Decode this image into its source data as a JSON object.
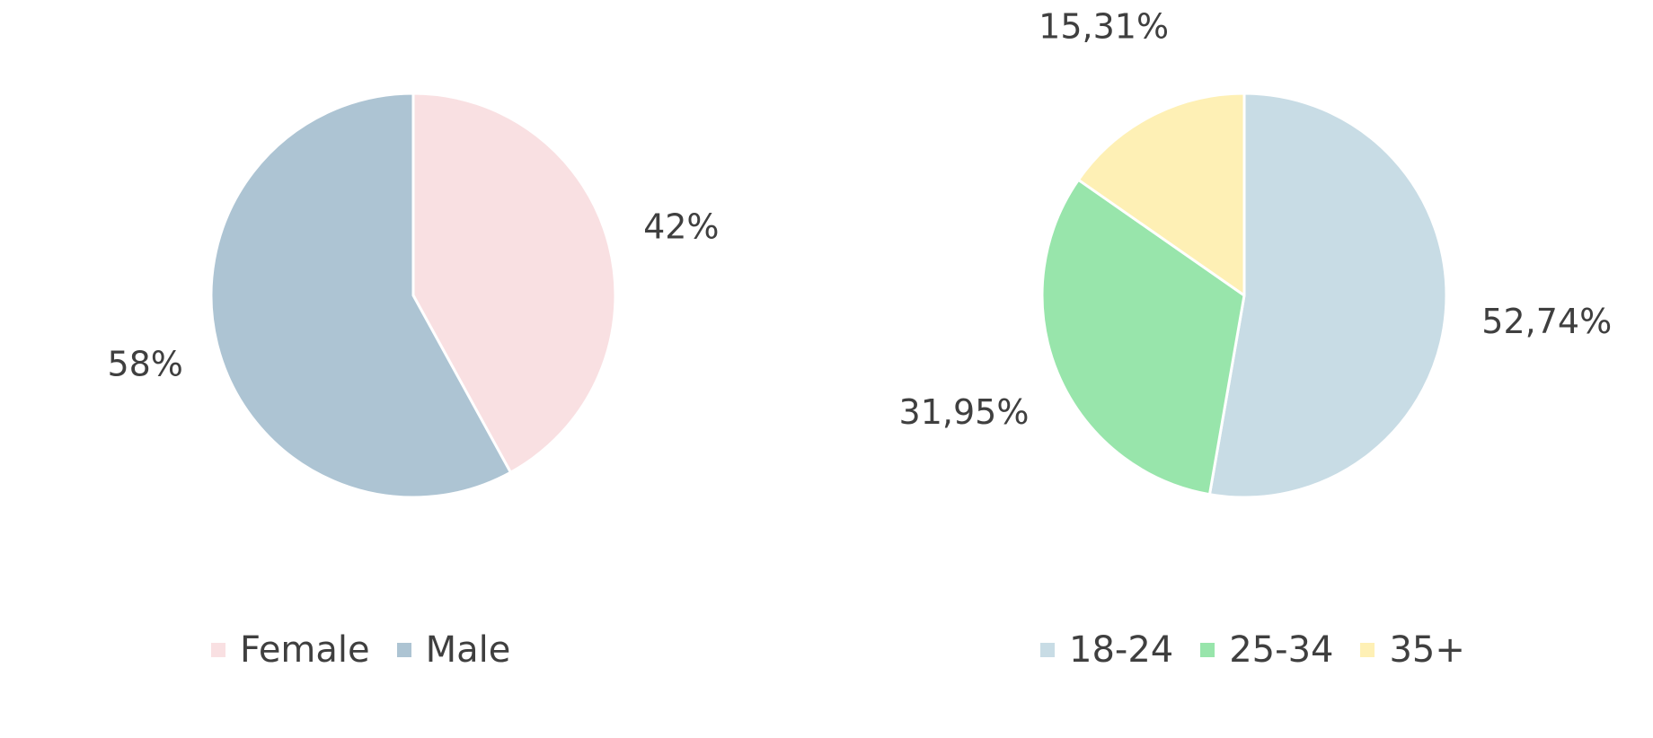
{
  "chart_data": [
    {
      "type": "pie",
      "slices": [
        {
          "label": "Female",
          "value": 42,
          "value_label": "42%",
          "color": "#f9e0e2"
        },
        {
          "label": "Male",
          "value": 58,
          "value_label": "58%",
          "color": "#adc4d3"
        }
      ],
      "legend": {
        "position": "bottom",
        "entries": [
          "Female",
          "Male"
        ]
      },
      "start_angle": "12 o'clock",
      "direction": "clockwise"
    },
    {
      "type": "pie",
      "slices": [
        {
          "label": "18-24",
          "value": 52.74,
          "value_label": "52,74%",
          "color": "#c8dce5"
        },
        {
          "label": "25-34",
          "value": 31.95,
          "value_label": "31,95%",
          "color": "#98e5ab"
        },
        {
          "label": "35+",
          "value": 15.31,
          "value_label": "15,31%",
          "color": "#fef0b5"
        }
      ],
      "legend": {
        "position": "bottom",
        "entries": [
          "18-24",
          "25-34",
          "35+"
        ]
      },
      "start_angle": "12 o'clock",
      "direction": "clockwise"
    }
  ]
}
